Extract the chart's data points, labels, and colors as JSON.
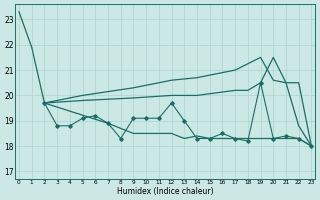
{
  "bg_color": "#cce8e5",
  "grid_color": "#aad4d0",
  "line_color": "#1a6e66",
  "xlabel": "Humidex (Indice chaleur)",
  "x_ticks": [
    0,
    1,
    2,
    3,
    4,
    5,
    6,
    7,
    8,
    9,
    10,
    11,
    12,
    13,
    14,
    15,
    16,
    17,
    18,
    19,
    20,
    21,
    22,
    23
  ],
  "y_ticks": [
    17,
    18,
    19,
    20,
    21,
    22,
    23
  ],
  "ylim": [
    16.7,
    23.6
  ],
  "xlim": [
    -0.3,
    23.3
  ],
  "line1_x": [
    0,
    1,
    2
  ],
  "line1_y": [
    23.3,
    21.9,
    19.7
  ],
  "line_upper_x": [
    2,
    5,
    9,
    12,
    14,
    17,
    19,
    20,
    21,
    22,
    23
  ],
  "line_upper_y": [
    19.7,
    20.0,
    20.3,
    20.6,
    20.7,
    21.0,
    21.5,
    20.6,
    20.5,
    20.5,
    18.0
  ],
  "line_mid_x": [
    2,
    5,
    9,
    12,
    14,
    17,
    18,
    19,
    20,
    21,
    22,
    23
  ],
  "line_mid_y": [
    19.7,
    19.8,
    19.9,
    20.0,
    20.0,
    20.2,
    20.2,
    20.5,
    21.5,
    20.5,
    18.8,
    18.0
  ],
  "line_jagged_x": [
    2,
    3,
    4,
    5,
    6,
    7,
    8,
    9,
    10,
    11,
    12,
    13,
    14,
    15,
    16,
    17,
    18,
    19,
    20,
    21,
    22,
    23
  ],
  "line_jagged_y": [
    19.7,
    18.8,
    18.8,
    19.1,
    19.2,
    18.9,
    18.3,
    19.1,
    19.1,
    19.1,
    19.7,
    19.0,
    18.3,
    18.3,
    18.5,
    18.3,
    18.2,
    20.5,
    18.3,
    18.4,
    18.3,
    18.0
  ],
  "line_bottom_x": [
    2,
    7,
    9,
    12,
    13,
    14,
    15,
    16,
    17,
    18,
    19,
    20,
    21,
    22,
    23
  ],
  "line_bottom_y": [
    19.7,
    18.9,
    18.5,
    18.5,
    18.3,
    18.4,
    18.3,
    18.3,
    18.3,
    18.3,
    18.3,
    18.3,
    18.3,
    18.3,
    18.0
  ]
}
